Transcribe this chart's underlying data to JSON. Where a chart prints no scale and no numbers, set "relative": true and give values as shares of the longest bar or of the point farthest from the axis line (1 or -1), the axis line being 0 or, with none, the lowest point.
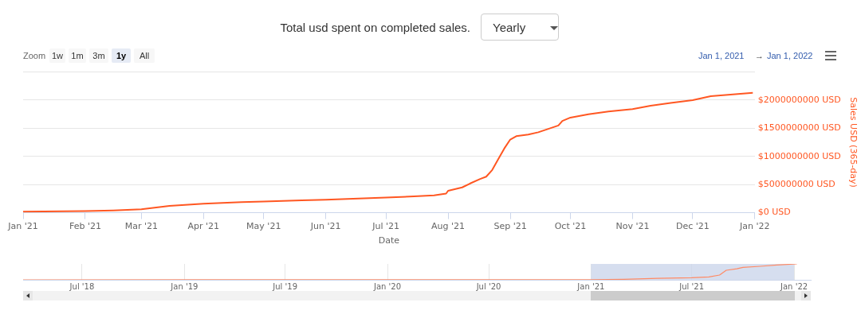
{
  "chart_data": [
    {
      "type": "line",
      "title": "Total usd spent on completed sales.",
      "xlabel": "Date",
      "ylabel": "Sales USD (365-day)",
      "annotations": [
        "Yearly",
        "Zoom",
        "1w",
        "1m",
        "3m",
        "1y",
        "All",
        "Jan 1, 2021",
        "→",
        "Jan 1, 2022"
      ],
      "series": [
        {
          "color": "#ff5722",
          "x": [
            "2021-01-01",
            "2021-02-01",
            "2021-02-15",
            "2021-03-01",
            "2021-03-15",
            "2021-04-01",
            "2021-04-20",
            "2021-05-01",
            "2021-05-20",
            "2021-06-01",
            "2021-07-01",
            "2021-07-15",
            "2021-07-25",
            "2021-07-31",
            "2021-08-01",
            "2021-08-08",
            "2021-08-12",
            "2021-08-17",
            "2021-08-20",
            "2021-08-23",
            "2021-08-26",
            "2021-08-29",
            "2021-09-01",
            "2021-09-04",
            "2021-09-10",
            "2021-09-15",
            "2021-09-20",
            "2021-09-25",
            "2021-09-27",
            "2021-10-01",
            "2021-10-10",
            "2021-10-20",
            "2021-11-01",
            "2021-11-10",
            "2021-11-20",
            "2021-12-01",
            "2021-12-10",
            "2021-12-31"
          ],
          "values": [
            20000000,
            30000000,
            40000000,
            60000000,
            120000000,
            160000000,
            190000000,
            200000000,
            220000000,
            230000000,
            270000000,
            290000000,
            310000000,
            340000000,
            390000000,
            450000000,
            520000000,
            600000000,
            640000000,
            760000000,
            950000000,
            1140000000,
            1300000000,
            1360000000,
            1390000000,
            1430000000,
            1490000000,
            1550000000,
            1630000000,
            1690000000,
            1750000000,
            1800000000,
            1840000000,
            1900000000,
            1950000000,
            2000000000,
            2070000000,
            2130000000
          ]
        }
      ],
      "xlim": [
        "2021-01-01",
        "2022-01-01"
      ],
      "xticks": [
        {
          "value": "2021-01-01",
          "label": "Jan '21"
        },
        {
          "value": "2021-02-01",
          "label": "Feb '21"
        },
        {
          "value": "2021-03-01",
          "label": "Mar '21"
        },
        {
          "value": "2021-04-01",
          "label": "Apr '21"
        },
        {
          "value": "2021-05-01",
          "label": "May '21"
        },
        {
          "value": "2021-06-01",
          "label": "Jun '21"
        },
        {
          "value": "2021-07-01",
          "label": "Jul '21"
        },
        {
          "value": "2021-08-01",
          "label": "Aug '21"
        },
        {
          "value": "2021-09-01",
          "label": "Sep '21"
        },
        {
          "value": "2021-10-01",
          "label": "Oct '21"
        },
        {
          "value": "2021-11-01",
          "label": "Nov '21"
        },
        {
          "value": "2021-12-01",
          "label": "Dec '21"
        },
        {
          "value": "2022-01-01",
          "label": "Jan '22"
        }
      ],
      "ylim": [
        0,
        2500000000
      ],
      "yticks": [
        {
          "value": 0,
          "label": "$0 USD"
        },
        {
          "value": 500000000,
          "label": "$500000000 USD"
        },
        {
          "value": 1000000000,
          "label": "$1000000000 USD"
        },
        {
          "value": 1500000000,
          "label": "$1500000000 USD"
        },
        {
          "value": 2000000000,
          "label": "$2000000000 USD"
        },
        {
          "value": 2500000000,
          "label": null
        }
      ],
      "grid": "y",
      "legend": false,
      "marker": "none"
    },
    {
      "type": "line",
      "relative": true,
      "tick_labels": "x",
      "series": [
        {
          "color": "#ff8a65",
          "x": [
            "2018-03-17",
            "2020-12-31",
            "2021-03-01",
            "2021-05-01",
            "2021-07-01",
            "2021-08-01",
            "2021-08-20",
            "2021-09-01",
            "2021-09-20",
            "2021-10-01",
            "2021-11-01",
            "2021-12-01",
            "2021-12-31",
            "2022-01-06"
          ],
          "values": [
            0,
            0.01,
            0.03,
            0.09,
            0.13,
            0.18,
            0.3,
            0.6,
            0.69,
            0.78,
            0.85,
            0.93,
            0.99,
            1
          ]
        }
      ],
      "xlim": [
        "2018-03-17",
        "2022-01-31"
      ],
      "xticks": [
        {
          "value": "2018-07-01",
          "label": "Jul '18"
        },
        {
          "value": "2019-01-01",
          "label": "Jan '19"
        },
        {
          "value": "2019-07-01",
          "label": "Jul '19"
        },
        {
          "value": "2020-01-01",
          "label": "Jan '20"
        },
        {
          "value": "2020-07-01",
          "label": "Jul '20"
        },
        {
          "value": "2021-01-01",
          "label": "Jan '21"
        },
        {
          "value": "2021-07-01",
          "label": "Jul '21"
        },
        {
          "value": "2022-01-01",
          "label": "Jan '22"
        }
      ],
      "bands": [
        {
          "axis": "x",
          "from": "2021-01-01",
          "to": "2022-01-01",
          "color": "#ccd6eb"
        }
      ],
      "grid": "x",
      "legend": false,
      "marker": "none"
    }
  ]
}
